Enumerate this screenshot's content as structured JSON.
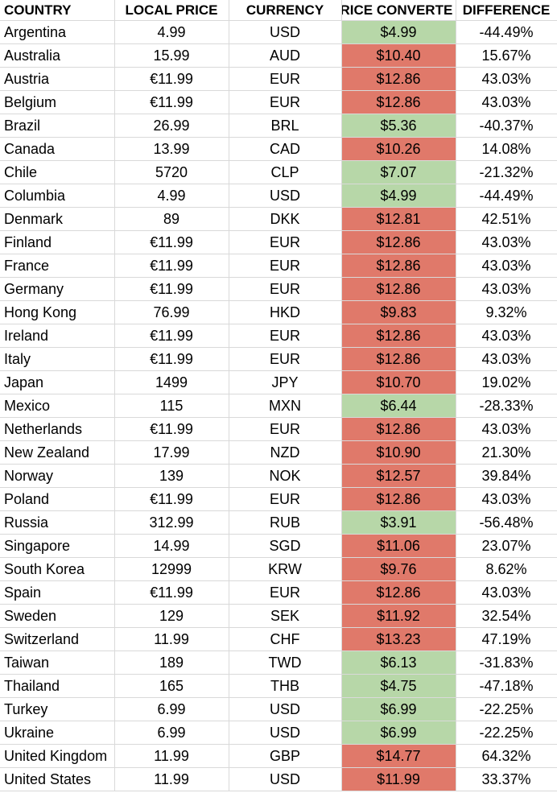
{
  "headers": {
    "country": "COUNTRY",
    "local_price": "LOCAL PRICE",
    "currency": "CURRENCY",
    "converted": "RICE CONVERTE",
    "difference": "DIFFERENCE"
  },
  "colors": {
    "cheaper": "#b7d7a8",
    "pricier": "#e0796a"
  },
  "rows": [
    {
      "country": "Argentina",
      "local": "4.99",
      "currency": "USD",
      "converted": "$4.99",
      "diff": "-44.49%",
      "status": "green"
    },
    {
      "country": "Australia",
      "local": "15.99",
      "currency": "AUD",
      "converted": "$10.40",
      "diff": "15.67%",
      "status": "red"
    },
    {
      "country": "Austria",
      "local": "€11.99",
      "currency": "EUR",
      "converted": "$12.86",
      "diff": "43.03%",
      "status": "red"
    },
    {
      "country": "Belgium",
      "local": "€11.99",
      "currency": "EUR",
      "converted": "$12.86",
      "diff": "43.03%",
      "status": "red"
    },
    {
      "country": "Brazil",
      "local": "26.99",
      "currency": "BRL",
      "converted": "$5.36",
      "diff": "-40.37%",
      "status": "green"
    },
    {
      "country": "Canada",
      "local": "13.99",
      "currency": "CAD",
      "converted": "$10.26",
      "diff": "14.08%",
      "status": "red"
    },
    {
      "country": "Chile",
      "local": "5720",
      "currency": "CLP",
      "converted": "$7.07",
      "diff": "-21.32%",
      "status": "green"
    },
    {
      "country": "Columbia",
      "local": "4.99",
      "currency": "USD",
      "converted": "$4.99",
      "diff": "-44.49%",
      "status": "green"
    },
    {
      "country": "Denmark",
      "local": "89",
      "currency": "DKK",
      "converted": "$12.81",
      "diff": "42.51%",
      "status": "red"
    },
    {
      "country": "Finland",
      "local": "€11.99",
      "currency": "EUR",
      "converted": "$12.86",
      "diff": "43.03%",
      "status": "red"
    },
    {
      "country": "France",
      "local": "€11.99",
      "currency": "EUR",
      "converted": "$12.86",
      "diff": "43.03%",
      "status": "red"
    },
    {
      "country": "Germany",
      "local": "€11.99",
      "currency": "EUR",
      "converted": "$12.86",
      "diff": "43.03%",
      "status": "red"
    },
    {
      "country": "Hong Kong",
      "local": "76.99",
      "currency": "HKD",
      "converted": "$9.83",
      "diff": "9.32%",
      "status": "red"
    },
    {
      "country": "Ireland",
      "local": "€11.99",
      "currency": "EUR",
      "converted": "$12.86",
      "diff": "43.03%",
      "status": "red"
    },
    {
      "country": "Italy",
      "local": "€11.99",
      "currency": "EUR",
      "converted": "$12.86",
      "diff": "43.03%",
      "status": "red"
    },
    {
      "country": "Japan",
      "local": "1499",
      "currency": "JPY",
      "converted": "$10.70",
      "diff": "19.02%",
      "status": "red"
    },
    {
      "country": "Mexico",
      "local": "115",
      "currency": "MXN",
      "converted": "$6.44",
      "diff": "-28.33%",
      "status": "green"
    },
    {
      "country": "Netherlands",
      "local": "€11.99",
      "currency": "EUR",
      "converted": "$12.86",
      "diff": "43.03%",
      "status": "red"
    },
    {
      "country": "New Zealand",
      "local": "17.99",
      "currency": "NZD",
      "converted": "$10.90",
      "diff": "21.30%",
      "status": "red"
    },
    {
      "country": "Norway",
      "local": "139",
      "currency": "NOK",
      "converted": "$12.57",
      "diff": "39.84%",
      "status": "red"
    },
    {
      "country": "Poland",
      "local": "€11.99",
      "currency": "EUR",
      "converted": "$12.86",
      "diff": "43.03%",
      "status": "red"
    },
    {
      "country": "Russia",
      "local": "312.99",
      "currency": "RUB",
      "converted": "$3.91",
      "diff": "-56.48%",
      "status": "green"
    },
    {
      "country": "Singapore",
      "local": "14.99",
      "currency": "SGD",
      "converted": "$11.06",
      "diff": "23.07%",
      "status": "red"
    },
    {
      "country": "South Korea",
      "local": "12999",
      "currency": "KRW",
      "converted": "$9.76",
      "diff": "8.62%",
      "status": "red"
    },
    {
      "country": "Spain",
      "local": "€11.99",
      "currency": "EUR",
      "converted": "$12.86",
      "diff": "43.03%",
      "status": "red"
    },
    {
      "country": "Sweden",
      "local": "129",
      "currency": "SEK",
      "converted": "$11.92",
      "diff": "32.54%",
      "status": "red"
    },
    {
      "country": "Switzerland",
      "local": "11.99",
      "currency": "CHF",
      "converted": "$13.23",
      "diff": "47.19%",
      "status": "red"
    },
    {
      "country": "Taiwan",
      "local": "189",
      "currency": "TWD",
      "converted": "$6.13",
      "diff": "-31.83%",
      "status": "green"
    },
    {
      "country": "Thailand",
      "local": "165",
      "currency": "THB",
      "converted": "$4.75",
      "diff": "-47.18%",
      "status": "green"
    },
    {
      "country": "Turkey",
      "local": "6.99",
      "currency": "USD",
      "converted": "$6.99",
      "diff": "-22.25%",
      "status": "green"
    },
    {
      "country": "Ukraine",
      "local": "6.99",
      "currency": "USD",
      "converted": "$6.99",
      "diff": "-22.25%",
      "status": "green"
    },
    {
      "country": "United Kingdom",
      "local": "11.99",
      "currency": "GBP",
      "converted": "$14.77",
      "diff": "64.32%",
      "status": "red"
    },
    {
      "country": "United States",
      "local": "11.99",
      "currency": "USD",
      "converted": "$11.99",
      "diff": "33.37%",
      "status": "red"
    }
  ]
}
